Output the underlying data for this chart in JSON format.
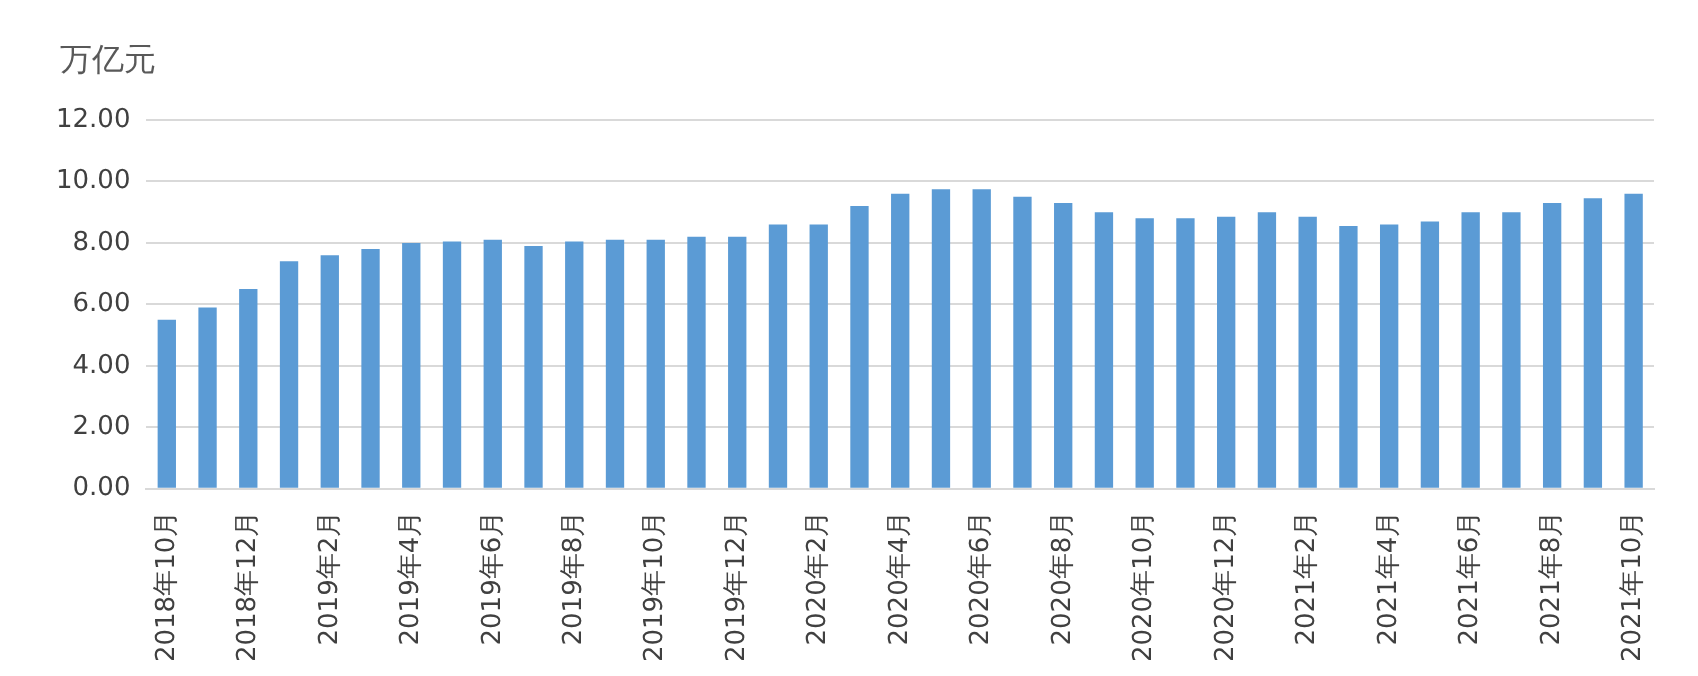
{
  "chart_data": {
    "type": "bar",
    "ylabel": "万亿元",
    "categories": [
      "2018年10月",
      null,
      "2018年12月",
      null,
      "2019年2月",
      null,
      "2019年4月",
      null,
      "2019年6月",
      null,
      "2019年8月",
      null,
      "2019年10月",
      null,
      "2019年12月",
      null,
      "2020年2月",
      null,
      "2020年4月",
      null,
      "2020年6月",
      null,
      "2020年8月",
      null,
      "2020年10月",
      null,
      "2020年12月",
      null,
      "2021年2月",
      null,
      "2021年4月",
      null,
      "2021年6月",
      null,
      "2021年8月",
      null,
      "2021年10月"
    ],
    "values": [
      5.5,
      5.9,
      6.5,
      7.4,
      7.6,
      7.8,
      8.0,
      8.05,
      8.1,
      7.9,
      8.05,
      8.1,
      8.1,
      8.2,
      8.2,
      8.6,
      8.6,
      9.2,
      9.6,
      9.75,
      9.75,
      9.5,
      9.3,
      9.0,
      8.8,
      8.8,
      8.85,
      9.0,
      8.85,
      8.55,
      8.6,
      8.7,
      9.0,
      9.0,
      9.3,
      9.45,
      9.6
    ],
    "color": "#5b9bd5",
    "ylim": [
      0,
      12
    ],
    "yticks": [
      {
        "value": 0,
        "label": "0.00"
      },
      {
        "value": 2,
        "label": "2.00"
      },
      {
        "value": 4,
        "label": "4.00"
      },
      {
        "value": 6,
        "label": "6.00"
      },
      {
        "value": 8,
        "label": "8.00"
      },
      {
        "value": 10,
        "label": "10.00"
      },
      {
        "value": 12,
        "label": "12.00"
      }
    ],
    "grid": "y"
  }
}
